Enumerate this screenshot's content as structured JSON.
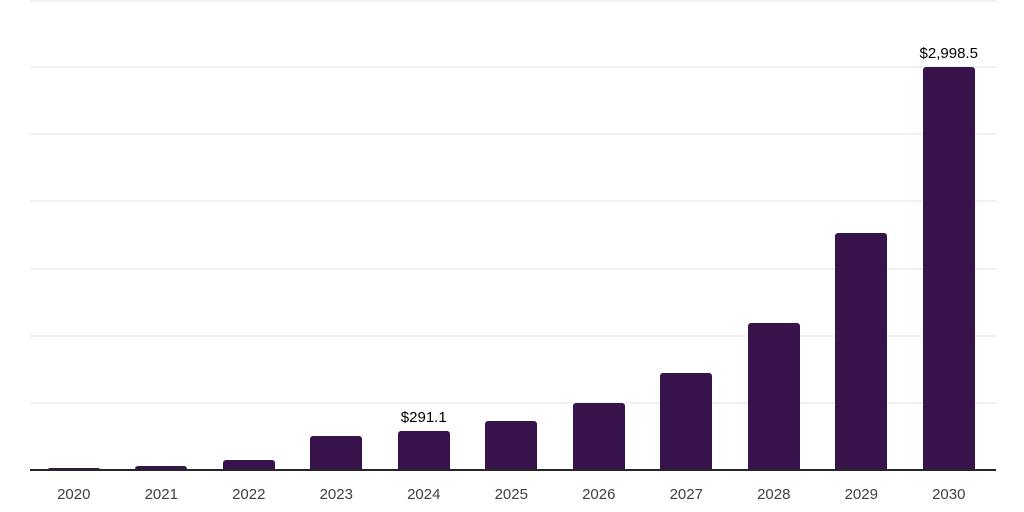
{
  "chart": {
    "background_color": "#ffffff"
  },
  "chart_data": {
    "type": "bar",
    "title": "",
    "xlabel": "",
    "ylabel": "",
    "categories": [
      "2020",
      "2021",
      "2022",
      "2023",
      "2024",
      "2025",
      "2026",
      "2027",
      "2028",
      "2029",
      "2030"
    ],
    "values": [
      13,
      33,
      78,
      250,
      291.1,
      363,
      498,
      719,
      1093,
      1767,
      2998.5
    ],
    "data_labels": [
      "",
      "",
      "",
      "",
      "$291.1",
      "",
      "",
      "",
      "",
      "",
      "$2,998.5"
    ],
    "ylim": [
      0,
      3500
    ],
    "gridline_interval": 500,
    "grid": true,
    "y_axis_labels_visible": false,
    "legend": null,
    "colors": {
      "bar": "#38124A",
      "axis_line": "#262626",
      "gridline": "#f0f0f0",
      "data_label_text": "#000000",
      "tick_label_text": "#404040"
    }
  }
}
